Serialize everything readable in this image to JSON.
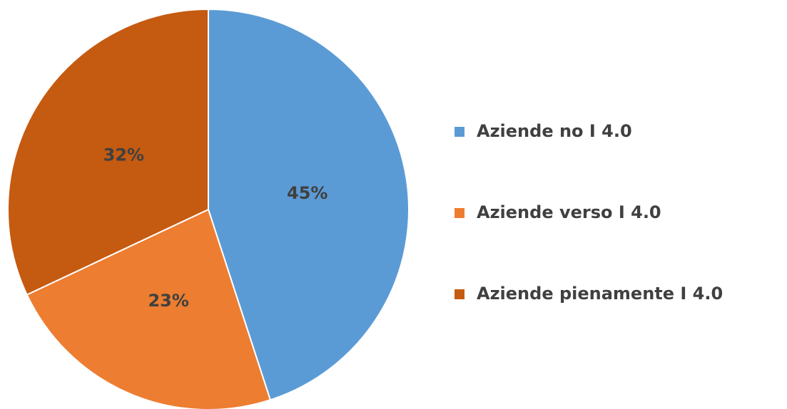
{
  "chart_data": {
    "type": "pie",
    "categories": [
      "Aziende no I 4.0",
      "Aziende verso I 4.0",
      "Aziende pienamente I 4.0"
    ],
    "values": [
      45,
      23,
      32
    ],
    "value_labels": [
      "45%",
      "23%",
      "32%"
    ],
    "colors": [
      "#5b9bd5",
      "#ed7d31",
      "#c55a11"
    ],
    "legend": "right"
  }
}
